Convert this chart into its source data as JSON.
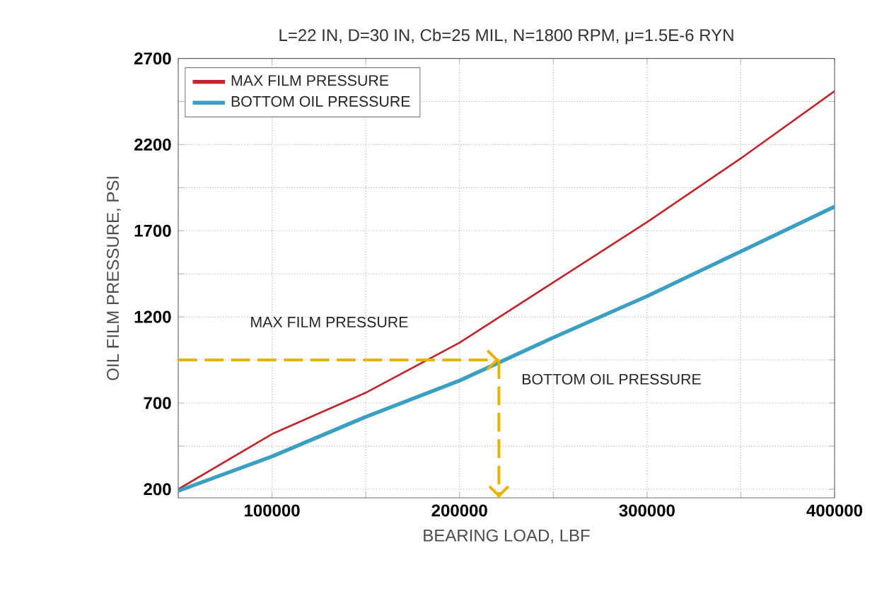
{
  "chart_data": {
    "type": "line",
    "title": "L=22 IN, D=30 IN, Cb=25 MIL, N=1800 RPM, μ=1.5E-6 RYN",
    "xlabel": "BEARING LOAD,  LBF",
    "ylabel": "OIL FILM PRESSURE,  PSI",
    "x": [
      50000,
      100000,
      150000,
      200000,
      250000,
      300000,
      350000,
      400000
    ],
    "series": [
      {
        "name": "MAX FILM PRESSURE",
        "color": "#c0272d",
        "values": [
          200,
          520,
          760,
          1050,
          1400,
          1750,
          2120,
          2510
        ]
      },
      {
        "name": "BOTTOM OIL PRESSURE",
        "color": "#3a9fc0",
        "values": [
          190,
          390,
          620,
          830,
          1080,
          1320,
          1580,
          1840
        ]
      }
    ],
    "xlim": [
      50000,
      400000
    ],
    "ylim": [
      150,
      2700
    ],
    "xticks": [
      {
        "value": 50000,
        "label": null
      },
      100000,
      {
        "value": 150000,
        "label": null
      },
      200000,
      {
        "value": 250000,
        "label": null
      },
      300000,
      {
        "value": 350000,
        "label": null
      },
      400000
    ],
    "yticks": [
      200,
      {
        "value": 450,
        "label": null
      },
      700,
      {
        "value": 950,
        "label": null
      },
      1200,
      {
        "value": 1450,
        "label": null
      },
      1700,
      {
        "value": 1950,
        "label": null
      },
      2200,
      {
        "value": 2450,
        "label": null
      },
      2700
    ],
    "ref_lines": [
      {
        "axis": "y",
        "value": 950,
        "color": "#e6b400",
        "line_style": "dashed"
      },
      {
        "axis": "x",
        "value": 221000,
        "color": "#e6b400",
        "line_style": "dashed"
      }
    ],
    "annotations": [
      "MAX FILM PRESSURE",
      "BOTTOM OIL PRESSURE"
    ],
    "grid": true,
    "legend": "top left",
    "marker": "none",
    "line_style": "solid"
  }
}
